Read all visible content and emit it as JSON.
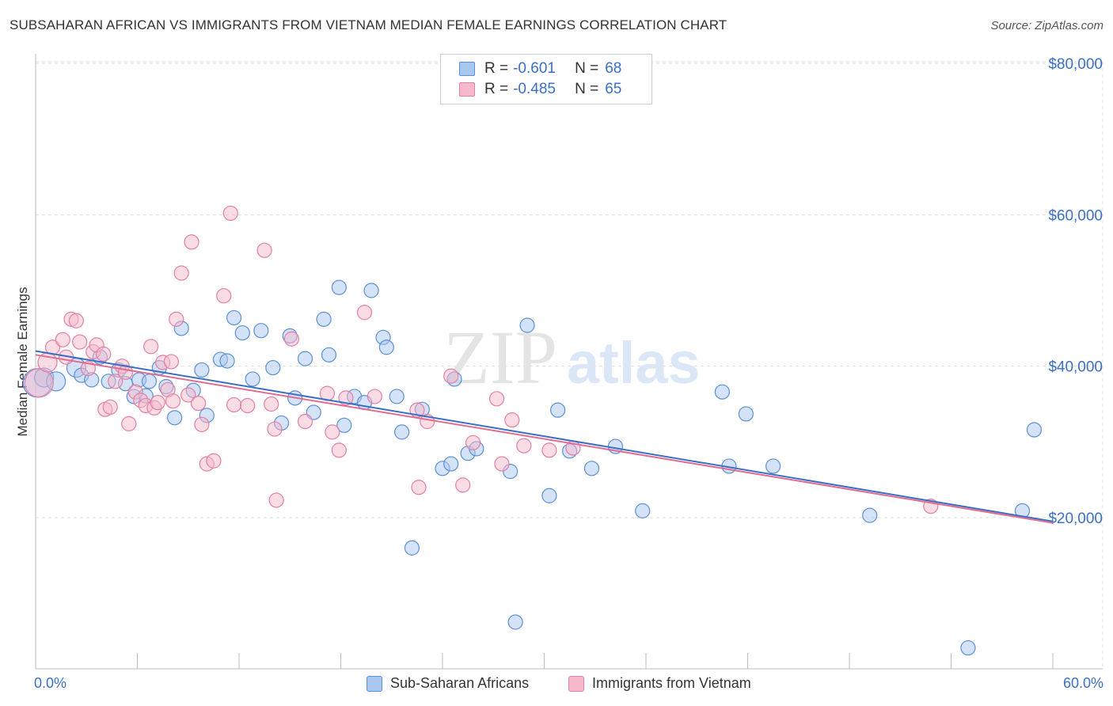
{
  "title": "SUBSAHARAN AFRICAN VS IMMIGRANTS FROM VIETNAM MEDIAN FEMALE EARNINGS CORRELATION CHART",
  "source": "Source: ZipAtlas.com",
  "watermark": {
    "zip": "ZIP",
    "atlas": "atlas"
  },
  "legend_top": [
    {
      "r_label": "R =",
      "r_value": "-0.601",
      "n_label": "N =",
      "n_value": "68"
    },
    {
      "r_label": "R =",
      "r_value": "-0.485",
      "n_label": "N =",
      "n_value": "65"
    }
  ],
  "legend_bottom": [
    "Sub-Saharan Africans",
    "Immigrants from Vietnam"
  ],
  "colors": {
    "blue_fill": "#a9c8f0",
    "blue_stroke": "#5b8fd6",
    "blue_line": "#3a6fc4",
    "pink_fill": "#f6b9cc",
    "pink_stroke": "#e47fa2",
    "pink_line": "#e06c93",
    "axis_text": "#3a6fc4",
    "grid": "#dddddd"
  },
  "chart_data": {
    "type": "scatter",
    "title": "SUBSAHARAN AFRICAN VS IMMIGRANTS FROM VIETNAM MEDIAN FEMALE EARNINGS CORRELATION CHART",
    "xlabel": "",
    "ylabel": "Median Female Earnings",
    "xlim": [
      0,
      60
    ],
    "ylim": [
      2000,
      82000
    ],
    "x_tick_labels": [
      "0.0%",
      "60.0%"
    ],
    "y_ticks": [
      20000,
      40000,
      60000,
      80000
    ],
    "y_tick_labels": [
      "$20,000",
      "$40,000",
      "$60,000",
      "$80,000"
    ],
    "series": [
      {
        "name": "Sub-Saharan Africans",
        "trend": {
          "x": [
            0,
            60
          ],
          "y": [
            42000,
            19500
          ]
        },
        "points": [
          {
            "x": 0.1,
            "y": 37800,
            "s": 3
          },
          {
            "x": 0.5,
            "y": 38500,
            "s": 2
          },
          {
            "x": 1.2,
            "y": 38000,
            "s": 2
          },
          {
            "x": 2.4,
            "y": 39800,
            "s": 2
          },
          {
            "x": 2.7,
            "y": 38800,
            "s": 1
          },
          {
            "x": 3.3,
            "y": 38200,
            "s": 1
          },
          {
            "x": 3.8,
            "y": 41200,
            "s": 1
          },
          {
            "x": 4.3,
            "y": 38000,
            "s": 1
          },
          {
            "x": 4.9,
            "y": 39500,
            "s": 1
          },
          {
            "x": 5.3,
            "y": 37700,
            "s": 1
          },
          {
            "x": 5.8,
            "y": 36000,
            "s": 1
          },
          {
            "x": 6.1,
            "y": 38200,
            "s": 1
          },
          {
            "x": 6.7,
            "y": 38000,
            "s": 1
          },
          {
            "x": 7.3,
            "y": 39800,
            "s": 1
          },
          {
            "x": 7.7,
            "y": 37300,
            "s": 1
          },
          {
            "x": 8.2,
            "y": 33200,
            "s": 1
          },
          {
            "x": 8.6,
            "y": 45000,
            "s": 1
          },
          {
            "x": 9.3,
            "y": 36800,
            "s": 1
          },
          {
            "x": 9.8,
            "y": 39500,
            "s": 1
          },
          {
            "x": 10.1,
            "y": 33500,
            "s": 1
          },
          {
            "x": 10.9,
            "y": 40900,
            "s": 1
          },
          {
            "x": 11.3,
            "y": 40700,
            "s": 1
          },
          {
            "x": 11.7,
            "y": 46400,
            "s": 1
          },
          {
            "x": 12.2,
            "y": 44400,
            "s": 1
          },
          {
            "x": 12.8,
            "y": 38300,
            "s": 1
          },
          {
            "x": 13.3,
            "y": 44700,
            "s": 1
          },
          {
            "x": 14.0,
            "y": 39800,
            "s": 1
          },
          {
            "x": 14.5,
            "y": 32500,
            "s": 1
          },
          {
            "x": 15.0,
            "y": 44000,
            "s": 1
          },
          {
            "x": 15.3,
            "y": 35800,
            "s": 1
          },
          {
            "x": 15.9,
            "y": 41000,
            "s": 1
          },
          {
            "x": 16.4,
            "y": 33900,
            "s": 1
          },
          {
            "x": 17.0,
            "y": 46200,
            "s": 1
          },
          {
            "x": 17.3,
            "y": 41500,
            "s": 1
          },
          {
            "x": 17.9,
            "y": 50400,
            "s": 1
          },
          {
            "x": 18.2,
            "y": 32200,
            "s": 1
          },
          {
            "x": 18.8,
            "y": 36000,
            "s": 1
          },
          {
            "x": 19.4,
            "y": 35200,
            "s": 1
          },
          {
            "x": 19.8,
            "y": 50000,
            "s": 1
          },
          {
            "x": 20.5,
            "y": 43800,
            "s": 1
          },
          {
            "x": 20.7,
            "y": 42500,
            "s": 1
          },
          {
            "x": 21.3,
            "y": 36000,
            "s": 1
          },
          {
            "x": 21.6,
            "y": 31300,
            "s": 1
          },
          {
            "x": 22.2,
            "y": 16000,
            "s": 1
          },
          {
            "x": 22.8,
            "y": 34300,
            "s": 1
          },
          {
            "x": 24.0,
            "y": 26500,
            "s": 1
          },
          {
            "x": 24.5,
            "y": 27100,
            "s": 1
          },
          {
            "x": 24.7,
            "y": 38300,
            "s": 1
          },
          {
            "x": 25.5,
            "y": 28500,
            "s": 1
          },
          {
            "x": 26.0,
            "y": 29100,
            "s": 1
          },
          {
            "x": 28.0,
            "y": 26100,
            "s": 1
          },
          {
            "x": 28.3,
            "y": 6200,
            "s": 1
          },
          {
            "x": 29.0,
            "y": 45400,
            "s": 1
          },
          {
            "x": 30.3,
            "y": 22900,
            "s": 1
          },
          {
            "x": 30.8,
            "y": 34200,
            "s": 1
          },
          {
            "x": 31.5,
            "y": 28800,
            "s": 1
          },
          {
            "x": 32.8,
            "y": 26500,
            "s": 1
          },
          {
            "x": 34.2,
            "y": 29400,
            "s": 1
          },
          {
            "x": 35.8,
            "y": 20900,
            "s": 1
          },
          {
            "x": 40.5,
            "y": 36600,
            "s": 1
          },
          {
            "x": 40.9,
            "y": 26800,
            "s": 1
          },
          {
            "x": 41.9,
            "y": 33700,
            "s": 1
          },
          {
            "x": 43.5,
            "y": 26800,
            "s": 1
          },
          {
            "x": 49.2,
            "y": 20300,
            "s": 1
          },
          {
            "x": 55.0,
            "y": 2800,
            "s": 1
          },
          {
            "x": 58.2,
            "y": 20900,
            "s": 1
          },
          {
            "x": 58.9,
            "y": 31600,
            "s": 1
          },
          {
            "x": 6.5,
            "y": 36100,
            "s": 1
          }
        ]
      },
      {
        "name": "Immigrants from Vietnam",
        "trend": {
          "x": [
            0,
            60
          ],
          "y": [
            41500,
            19300
          ]
        },
        "points": [
          {
            "x": 0.2,
            "y": 37800,
            "s": 3
          },
          {
            "x": 0.7,
            "y": 40500,
            "s": 2
          },
          {
            "x": 1.0,
            "y": 42500,
            "s": 1
          },
          {
            "x": 1.6,
            "y": 43500,
            "s": 1
          },
          {
            "x": 1.8,
            "y": 41200,
            "s": 1
          },
          {
            "x": 2.1,
            "y": 46200,
            "s": 1
          },
          {
            "x": 2.4,
            "y": 46000,
            "s": 1
          },
          {
            "x": 2.6,
            "y": 43200,
            "s": 1
          },
          {
            "x": 3.1,
            "y": 39700,
            "s": 1
          },
          {
            "x": 3.4,
            "y": 41900,
            "s": 1
          },
          {
            "x": 3.6,
            "y": 42800,
            "s": 1
          },
          {
            "x": 4.0,
            "y": 41600,
            "s": 1
          },
          {
            "x": 4.1,
            "y": 34300,
            "s": 1
          },
          {
            "x": 4.4,
            "y": 34600,
            "s": 1
          },
          {
            "x": 4.7,
            "y": 38000,
            "s": 1
          },
          {
            "x": 5.1,
            "y": 40000,
            "s": 1
          },
          {
            "x": 5.3,
            "y": 39200,
            "s": 1
          },
          {
            "x": 5.5,
            "y": 32400,
            "s": 1
          },
          {
            "x": 5.9,
            "y": 36600,
            "s": 1
          },
          {
            "x": 6.2,
            "y": 35500,
            "s": 1
          },
          {
            "x": 6.5,
            "y": 34800,
            "s": 1
          },
          {
            "x": 6.8,
            "y": 42600,
            "s": 1
          },
          {
            "x": 7.0,
            "y": 34500,
            "s": 1
          },
          {
            "x": 7.2,
            "y": 35200,
            "s": 1
          },
          {
            "x": 7.5,
            "y": 40500,
            "s": 1
          },
          {
            "x": 7.8,
            "y": 36900,
            "s": 1
          },
          {
            "x": 8.0,
            "y": 40600,
            "s": 1
          },
          {
            "x": 8.1,
            "y": 35400,
            "s": 1
          },
          {
            "x": 8.3,
            "y": 46200,
            "s": 1
          },
          {
            "x": 8.6,
            "y": 52300,
            "s": 1
          },
          {
            "x": 9.0,
            "y": 36200,
            "s": 1
          },
          {
            "x": 9.2,
            "y": 56400,
            "s": 1
          },
          {
            "x": 9.6,
            "y": 35100,
            "s": 1
          },
          {
            "x": 9.8,
            "y": 32300,
            "s": 1
          },
          {
            "x": 10.1,
            "y": 27100,
            "s": 1
          },
          {
            "x": 10.5,
            "y": 27500,
            "s": 1
          },
          {
            "x": 11.1,
            "y": 49300,
            "s": 1
          },
          {
            "x": 11.5,
            "y": 60200,
            "s": 1
          },
          {
            "x": 11.7,
            "y": 34900,
            "s": 1
          },
          {
            "x": 12.5,
            "y": 34800,
            "s": 1
          },
          {
            "x": 13.5,
            "y": 55300,
            "s": 1
          },
          {
            "x": 13.9,
            "y": 35000,
            "s": 1
          },
          {
            "x": 14.1,
            "y": 31700,
            "s": 1
          },
          {
            "x": 14.2,
            "y": 22300,
            "s": 1
          },
          {
            "x": 15.1,
            "y": 43600,
            "s": 1
          },
          {
            "x": 15.9,
            "y": 32700,
            "s": 1
          },
          {
            "x": 17.2,
            "y": 36400,
            "s": 1
          },
          {
            "x": 17.5,
            "y": 31300,
            "s": 1
          },
          {
            "x": 17.9,
            "y": 28900,
            "s": 1
          },
          {
            "x": 18.3,
            "y": 35800,
            "s": 1
          },
          {
            "x": 19.4,
            "y": 47100,
            "s": 1
          },
          {
            "x": 20.0,
            "y": 36000,
            "s": 1
          },
          {
            "x": 22.5,
            "y": 34200,
            "s": 1
          },
          {
            "x": 22.6,
            "y": 24000,
            "s": 1
          },
          {
            "x": 23.1,
            "y": 32700,
            "s": 1
          },
          {
            "x": 24.5,
            "y": 38700,
            "s": 1
          },
          {
            "x": 25.2,
            "y": 24300,
            "s": 1
          },
          {
            "x": 25.8,
            "y": 29900,
            "s": 1
          },
          {
            "x": 27.2,
            "y": 35700,
            "s": 1
          },
          {
            "x": 27.5,
            "y": 27100,
            "s": 1
          },
          {
            "x": 28.1,
            "y": 32900,
            "s": 1
          },
          {
            "x": 28.8,
            "y": 29500,
            "s": 1
          },
          {
            "x": 30.3,
            "y": 28900,
            "s": 1
          },
          {
            "x": 31.7,
            "y": 29200,
            "s": 1
          },
          {
            "x": 52.8,
            "y": 21500,
            "s": 1
          }
        ]
      }
    ]
  }
}
